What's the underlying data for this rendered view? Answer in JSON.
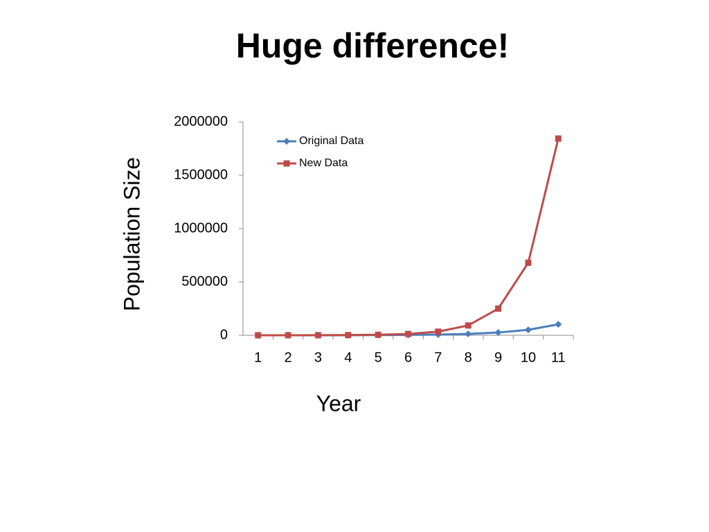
{
  "chart_data": {
    "type": "line",
    "title": "Huge difference!",
    "x_label": "Year",
    "y_label": "Population Size",
    "categories": [
      "1",
      "2",
      "3",
      "4",
      "5",
      "6",
      "7",
      "8",
      "9",
      "10",
      "11"
    ],
    "series": [
      {
        "name": "Original Data",
        "color": "#4a7ebb",
        "marker": "diamond",
        "values": [
          100,
          200,
          400,
          800,
          1600,
          3200,
          6400,
          12800,
          25600,
          51200,
          102400
        ]
      },
      {
        "name": "New Data",
        "color": "#be4b48",
        "marker": "square",
        "values": [
          85,
          230,
          625,
          1700,
          4600,
          12500,
          34000,
          92000,
          250000,
          680000,
          1844000
        ]
      }
    ],
    "ylim": [
      0,
      2000000
    ],
    "yticks": [
      0,
      500000,
      1000000,
      1500000,
      2000000
    ],
    "grid": false,
    "legend": "top-left"
  }
}
